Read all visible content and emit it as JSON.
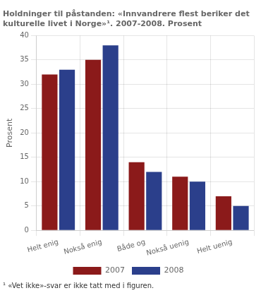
{
  "chart_data": {
    "type": "bar",
    "title": "Holdninger til påstanden: «Innvandrere flest beriker det\nkulturelle livet i Norge»¹. 2007-2008. Prosent",
    "ylabel": "Prosent",
    "annotations": [
      "¹ «Vet ikke»-svar er ikke tatt med i figuren."
    ],
    "categories": [
      "Helt enig",
      "Nokså enig",
      "Både og",
      "Nokså uenig",
      "Helt uenig"
    ],
    "series": [
      {
        "name": "2007",
        "color": "#8B1A1A",
        "values": [
          32.0,
          35.0,
          14.0,
          11.0,
          7.0
        ]
      },
      {
        "name": "2008",
        "color": "#2B3F8B",
        "values": [
          33.0,
          38.0,
          12.0,
          10.0,
          5.0
        ]
      }
    ],
    "ylim": [
      0,
      40
    ],
    "yticks": [
      0,
      5,
      10,
      15,
      20,
      25,
      30,
      35,
      40
    ],
    "grid": true,
    "legend": "bottom"
  }
}
